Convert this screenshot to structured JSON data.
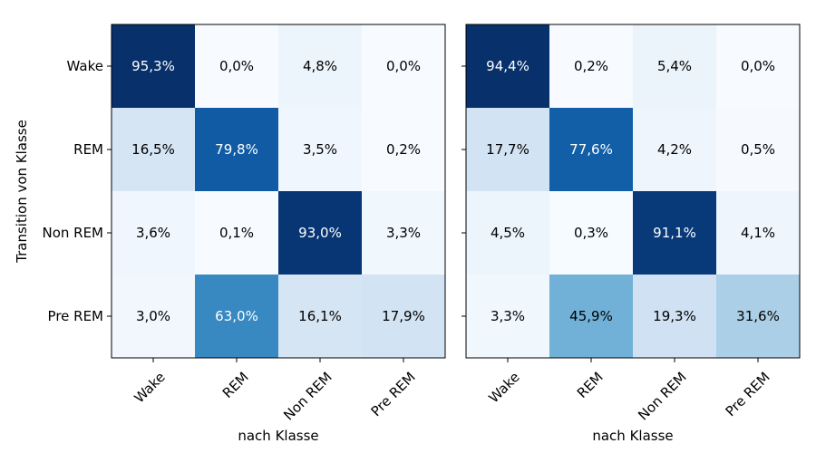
{
  "chart_data": [
    {
      "type": "heatmap",
      "categories_y": [
        "Wake",
        "REM",
        "Non REM",
        "Pre REM"
      ],
      "categories_x": [
        "Wake",
        "REM",
        "Non REM",
        "Pre REM"
      ],
      "ylabel": "Transition von Klasse",
      "xlabel": "nach Klasse",
      "colormap": "Blues",
      "value_unit": "%",
      "values": [
        [
          95.3,
          0.0,
          4.8,
          0.0
        ],
        [
          16.5,
          79.8,
          3.5,
          0.2
        ],
        [
          3.6,
          0.1,
          93.0,
          3.3
        ],
        [
          3.0,
          63.0,
          16.1,
          17.9
        ]
      ],
      "cell_labels": [
        [
          "95,3%",
          "0,0%",
          "4,8%",
          "0,0%"
        ],
        [
          "16,5%",
          "79,8%",
          "3,5%",
          "0,2%"
        ],
        [
          "3,6%",
          "0,1%",
          "93,0%",
          "3,3%"
        ],
        [
          "3,0%",
          "63,0%",
          "16,1%",
          "17,9%"
        ]
      ]
    },
    {
      "type": "heatmap",
      "categories_y": [
        "Wake",
        "REM",
        "Non REM",
        "Pre REM"
      ],
      "categories_x": [
        "Wake",
        "REM",
        "Non REM",
        "Pre REM"
      ],
      "ylabel": "",
      "xlabel": "nach Klasse",
      "colormap": "Blues",
      "value_unit": "%",
      "values": [
        [
          94.4,
          0.2,
          5.4,
          0.0
        ],
        [
          17.7,
          77.6,
          4.2,
          0.5
        ],
        [
          4.5,
          0.3,
          91.1,
          4.1
        ],
        [
          3.3,
          45.9,
          19.3,
          31.6
        ]
      ],
      "cell_labels": [
        [
          "94,4%",
          "0,2%",
          "5,4%",
          "0,0%"
        ],
        [
          "17,7%",
          "77,6%",
          "4,2%",
          "0,5%"
        ],
        [
          "4,5%",
          "0,3%",
          "91,1%",
          "4,1%"
        ],
        [
          "3,3%",
          "45,9%",
          "19,3%",
          "31,6%"
        ]
      ]
    }
  ]
}
